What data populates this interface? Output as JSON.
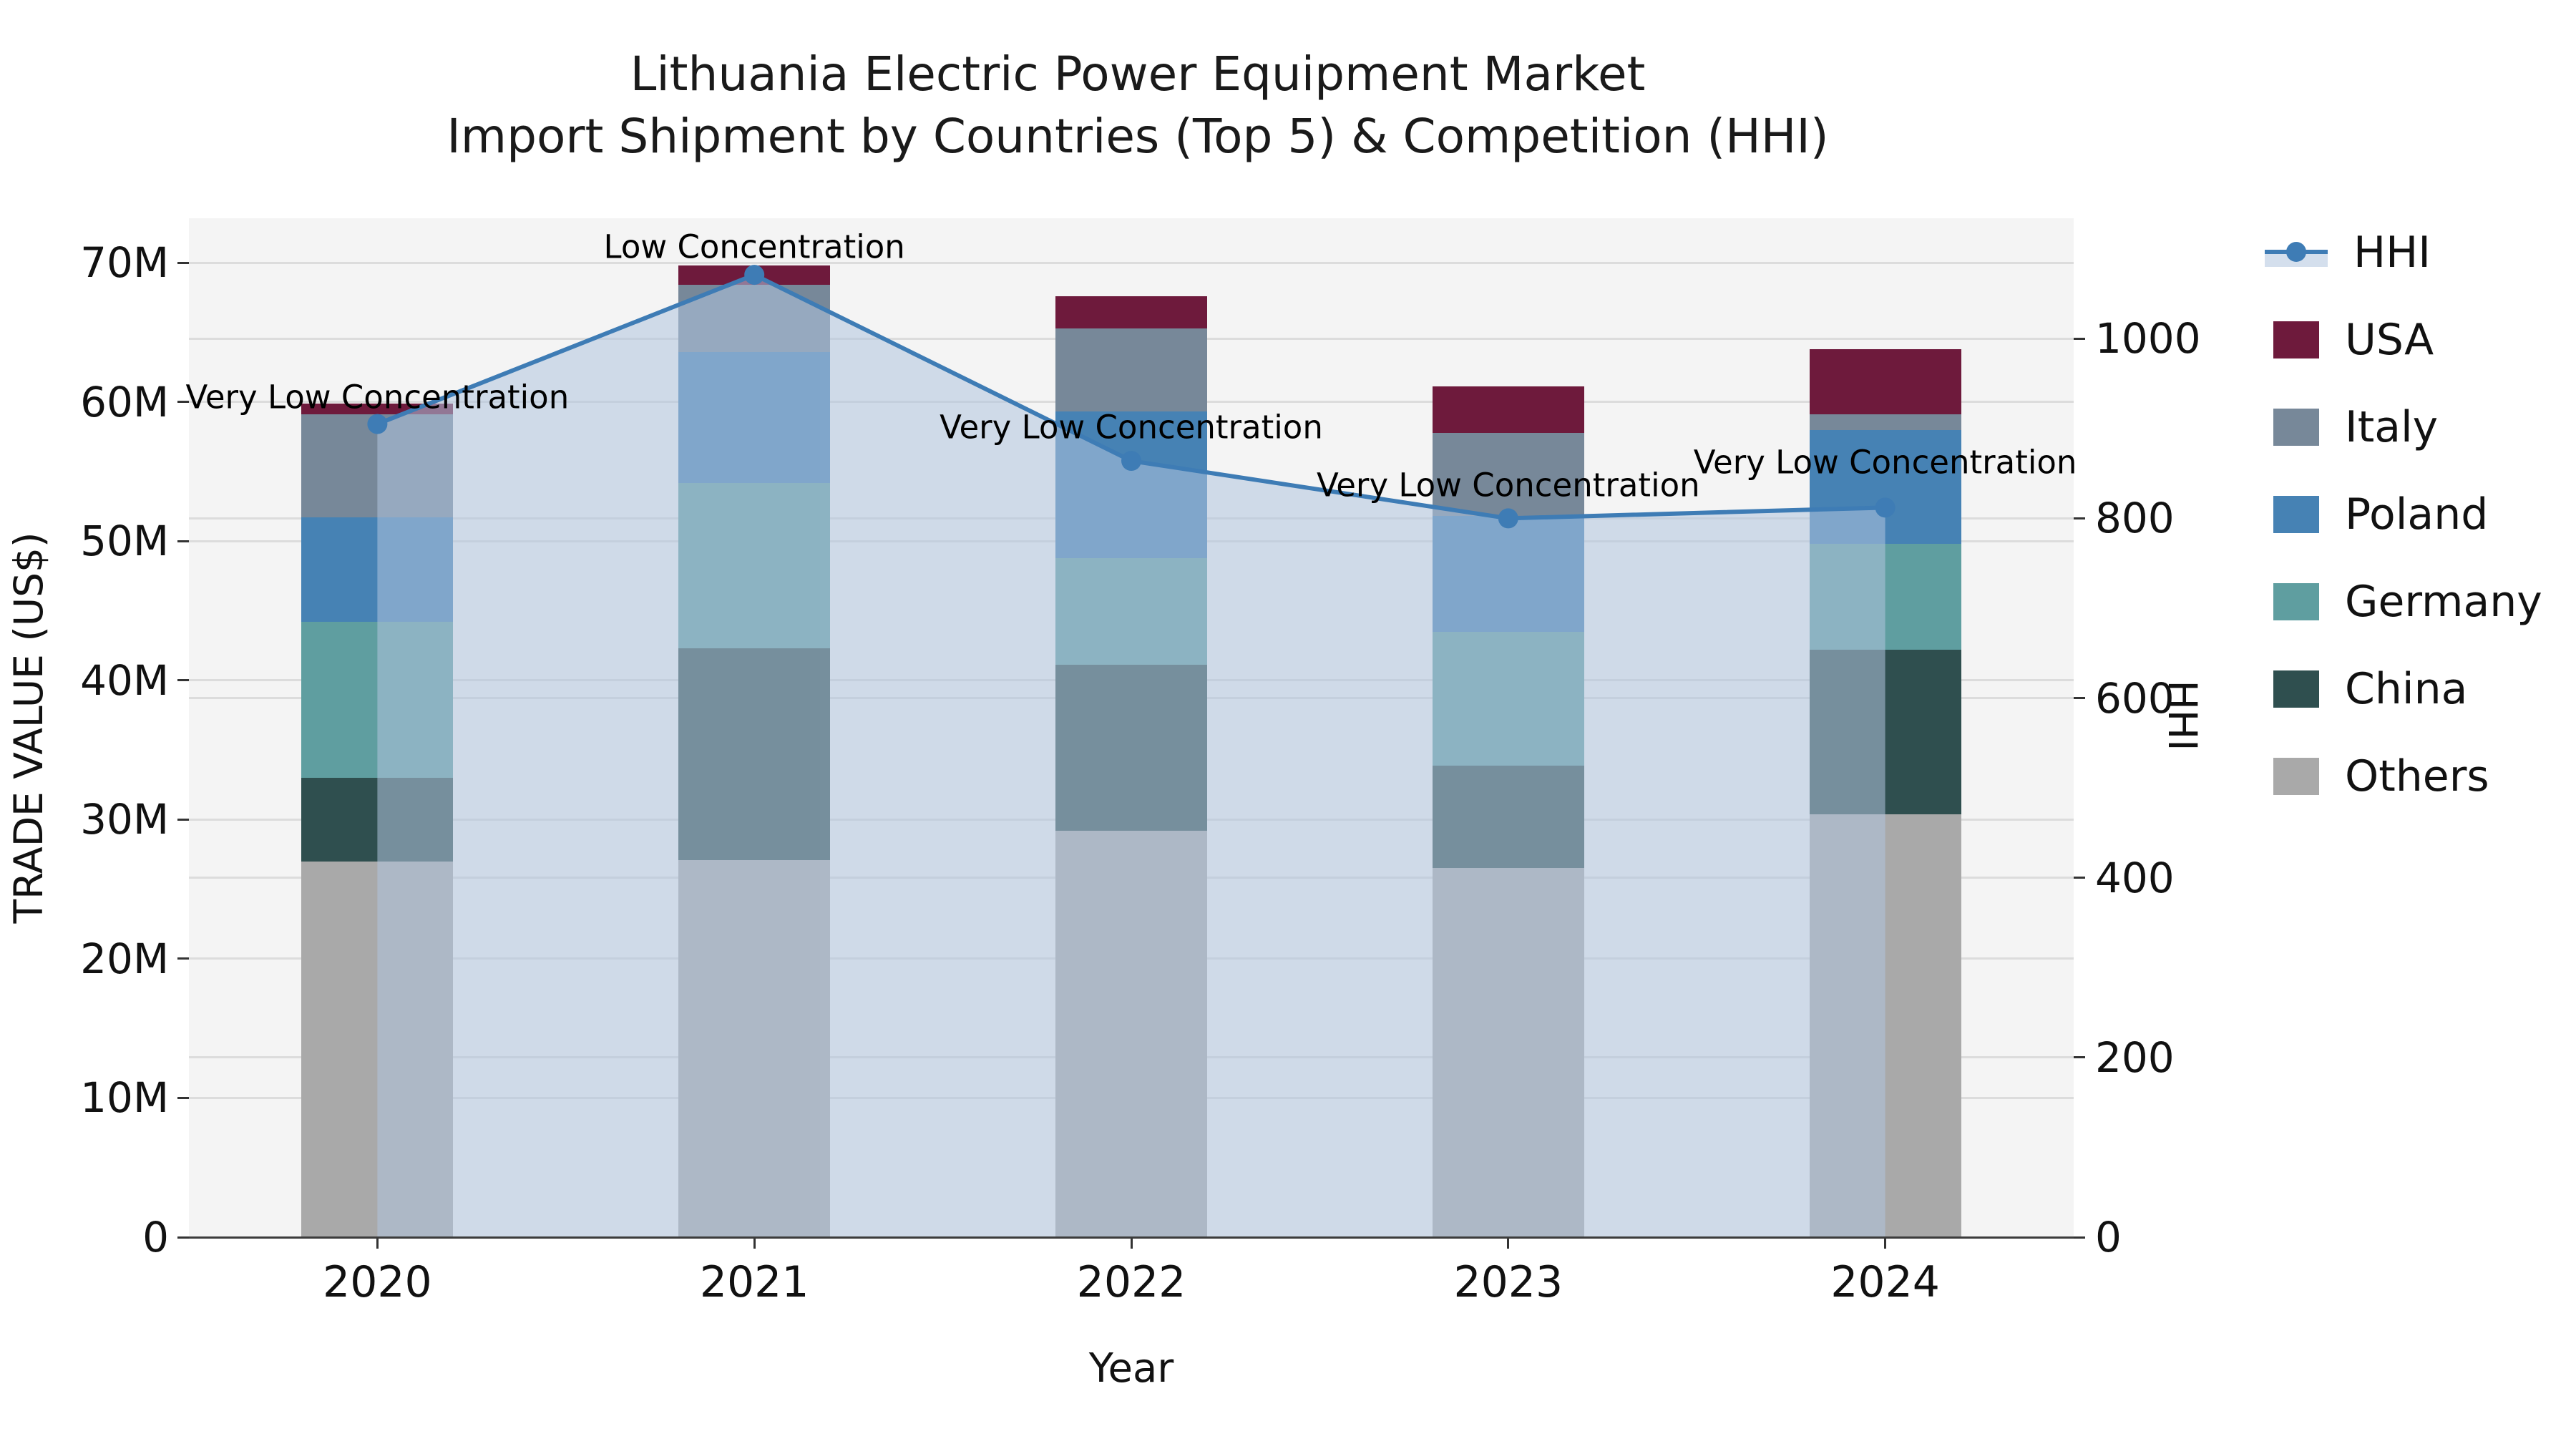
{
  "figure": {
    "title_line1": "Lithuania Electric Power Equipment Market",
    "title_line2": "Import Shipment by Countries (Top 5) & Competition (HHI)"
  },
  "chart_data": {
    "type": "bar+line",
    "title": "Lithuania Electric Power Equipment Market\nImport Shipment by Countries (Top 5) & Competition (HHI)",
    "xlabel": "Year",
    "ylabel_left": "TRADE VALUE (US$)",
    "ylabel_right": "HHI",
    "categories": [
      "2020",
      "2021",
      "2022",
      "2023",
      "2024"
    ],
    "bar_unit": "million US$",
    "series": [
      {
        "name": "Others",
        "color": "#a9a9a9",
        "values": [
          27.0,
          27.1,
          29.2,
          26.5,
          30.4
        ]
      },
      {
        "name": "China",
        "color": "#2f4f4f",
        "values": [
          6.0,
          15.2,
          11.9,
          7.4,
          11.8
        ]
      },
      {
        "name": "Germany",
        "color": "#5f9ea0",
        "values": [
          11.2,
          11.9,
          7.7,
          9.6,
          7.6
        ]
      },
      {
        "name": "Poland",
        "color": "#4682b4",
        "values": [
          7.5,
          9.4,
          10.5,
          8.3,
          8.2
        ]
      },
      {
        "name": "Italy",
        "color": "#778899",
        "values": [
          7.4,
          4.8,
          6.0,
          6.0,
          1.1
        ]
      },
      {
        "name": "USA",
        "color": "#6e1a3c",
        "values": [
          0.8,
          1.4,
          2.3,
          3.3,
          4.7
        ]
      }
    ],
    "bar_totals": [
      59.9,
      69.8,
      67.6,
      61.1,
      63.8
    ],
    "line": {
      "name": "HHI",
      "color": "#3e7cb5",
      "fill_color": "rgba(176,196,222,0.55)",
      "values": [
        905,
        1071,
        864,
        800,
        812
      ]
    },
    "annotations": [
      {
        "category": "2020",
        "text": "Very Low Concentration",
        "dy": 38
      },
      {
        "category": "2021",
        "text": "Low Concentration",
        "dy": 39
      },
      {
        "category": "2022",
        "text": "Very Low Concentration",
        "dy": 47
      },
      {
        "category": "2023",
        "text": "Very Low Concentration",
        "dy": 46
      },
      {
        "category": "2024",
        "text": "Very Low Concentration",
        "dy": 63
      }
    ],
    "ylim_left": [
      0,
      73.2
    ],
    "yticks_left": {
      "values": [
        0,
        10,
        20,
        30,
        40,
        50,
        60,
        70
      ],
      "labels": [
        "0",
        "10M",
        "20M",
        "30M",
        "40M",
        "50M",
        "60M",
        "70M"
      ]
    },
    "ylim_right": [
      0,
      1134
    ],
    "yticks_right": {
      "values": [
        0,
        200,
        400,
        600,
        800,
        1000
      ],
      "labels": [
        "0",
        "200",
        "400",
        "600",
        "800",
        "1000"
      ]
    },
    "grid": true,
    "legend_position": "right",
    "legend_items": [
      {
        "label": "HHI",
        "color": "#3e7cb5",
        "type": "line"
      },
      {
        "label": "USA",
        "color": "#6e1a3c",
        "type": "patch"
      },
      {
        "label": "Italy",
        "color": "#778899",
        "type": "patch"
      },
      {
        "label": "Poland",
        "color": "#4682b4",
        "type": "patch"
      },
      {
        "label": "Germany",
        "color": "#5f9ea0",
        "type": "patch"
      },
      {
        "label": "China",
        "color": "#2f4f4f",
        "type": "patch"
      },
      {
        "label": "Others",
        "color": "#a9a9a9",
        "type": "patch"
      }
    ]
  }
}
